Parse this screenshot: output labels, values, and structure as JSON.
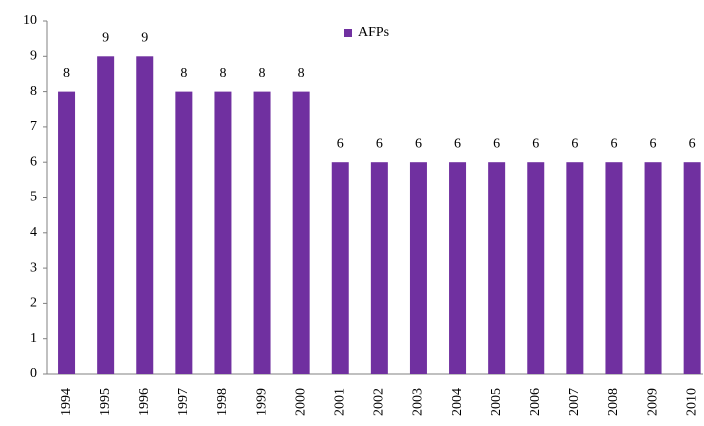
{
  "chart_data": {
    "type": "bar",
    "categories": [
      "1994",
      "1995",
      "1996",
      "1997",
      "1998",
      "1999",
      "2000",
      "2001",
      "2002",
      "2003",
      "2004",
      "2005",
      "2006",
      "2007",
      "2008",
      "2009",
      "2010"
    ],
    "series": [
      {
        "name": "AFPs",
        "color": "#7030a0",
        "values": [
          8,
          9,
          9,
          8,
          8,
          8,
          8,
          6,
          6,
          6,
          6,
          6,
          6,
          6,
          6,
          6,
          6
        ]
      }
    ],
    "ylim": [
      0,
      10
    ],
    "yticks": [
      0,
      1,
      2,
      3,
      4,
      5,
      6,
      7,
      8,
      9,
      10
    ],
    "grid": false,
    "legend": "top"
  }
}
